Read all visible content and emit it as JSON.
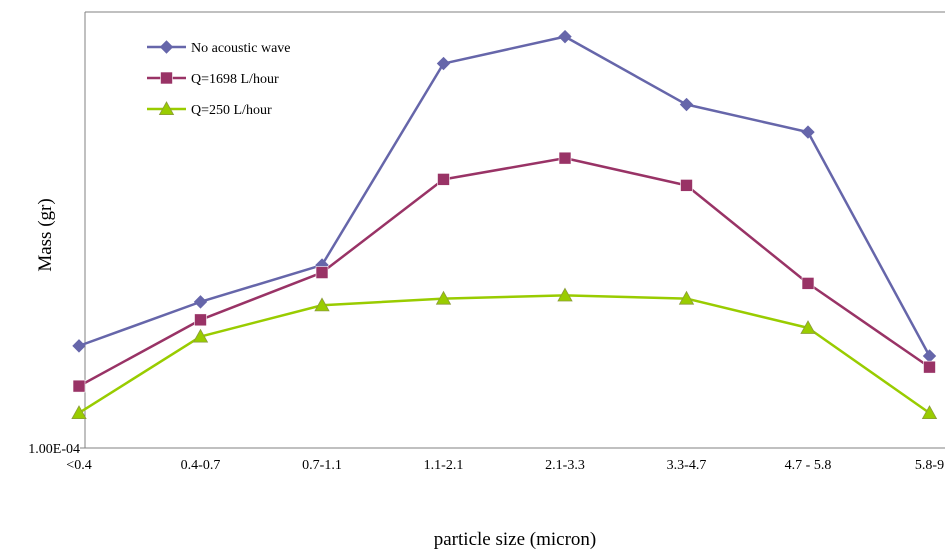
{
  "chart_data": {
    "type": "line",
    "title": "",
    "xlabel": "particle size (micron)",
    "ylabel": "Mass (gr)",
    "y_scale": "log",
    "y_tick_labels": [
      "1.00E-04"
    ],
    "ylim": [
      0.0001,
      0.0042
    ],
    "grid": false,
    "legend_position": "top-left",
    "categories": [
      "<0.4",
      "0.4-0.7",
      "0.7-1.1",
      "1.1-2.1",
      "2.1-3.3",
      "3.3-4.7",
      "4.7 - 5.8",
      "5.8-9"
    ],
    "series": [
      {
        "name": "No acoustic wave",
        "color": "#6666aa",
        "marker": "diamond",
        "values": [
          0.00024,
          0.00035,
          0.00048,
          0.0027,
          0.0034,
          0.0019,
          0.0015,
          0.00022
        ]
      },
      {
        "name": "Q=1698 L/hour",
        "color": "#993366",
        "marker": "square",
        "values": [
          0.00017,
          0.0003,
          0.00045,
          0.001,
          0.0012,
          0.00095,
          0.00041,
          0.0002
        ]
      },
      {
        "name": "Q=250 L/hour",
        "color": "#99cc00",
        "marker": "triangle",
        "values": [
          0.000135,
          0.00026,
          0.00034,
          0.00036,
          0.00037,
          0.00036,
          0.00028,
          0.000135
        ]
      }
    ]
  }
}
